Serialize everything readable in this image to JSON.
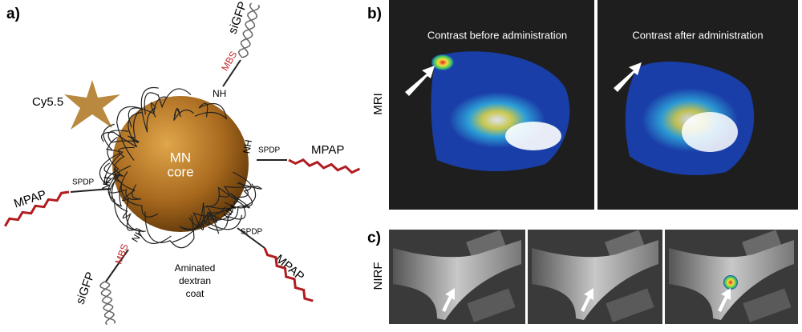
{
  "panels": {
    "a": "a)",
    "b": "b)",
    "c": "c)"
  },
  "nanoparticle": {
    "core": [
      "MN",
      "core"
    ],
    "dye": "Cy5.5",
    "coat": [
      "Aminated",
      "dextran",
      "coat"
    ]
  },
  "sirna_arms": [
    {
      "amine": "NH",
      "linker": "MBS",
      "payload": "siGFP"
    },
    {
      "amine": "NH",
      "linker": "MBS",
      "payload": "siGFP"
    }
  ],
  "peptide_arms": [
    {
      "amine": "NH",
      "linker": "SPDP",
      "payload": "MPAP"
    },
    {
      "amine": "NH",
      "linker": "SPDP",
      "payload": "MPAP"
    },
    {
      "amine": "NH",
      "linker": "SPDP",
      "payload": "MPAP"
    }
  ],
  "mri": {
    "label": "MRI",
    "before": "Contrast before administration",
    "after": "Contrast after administration"
  },
  "nirf": {
    "label": "NIRF"
  }
}
